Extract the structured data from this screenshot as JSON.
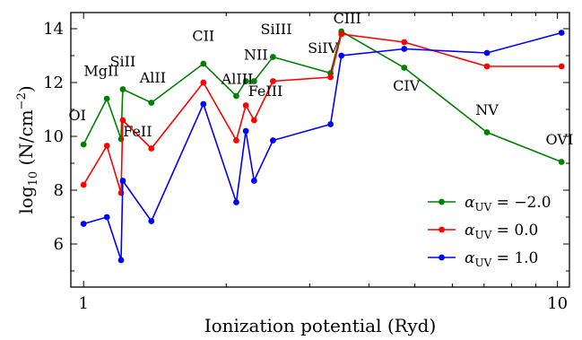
{
  "chart_data": {
    "type": "line",
    "xscale": "log",
    "xlim": [
      0.94,
      10.6
    ],
    "ylim": [
      4.4,
      14.6
    ],
    "xticks": [
      1,
      10
    ],
    "xtick_labels": [
      "1",
      "10"
    ],
    "yticks": [
      6,
      8,
      10,
      12,
      14
    ],
    "ytick_labels": [
      "6",
      "8",
      "10",
      "12",
      "14"
    ],
    "xlabel": "Ionization potential (Ryd)",
    "ylabel_parts": {
      "prefix": "log",
      "sub": "10",
      "mid": " (N/cm",
      "sup": "−2",
      "suffix": ")"
    },
    "grid": false,
    "legend_position": "lower-right",
    "series": [
      {
        "name_alpha": "α",
        "name_sub": "UV",
        "name_value": " = −2.0",
        "color": "#008000",
        "x": [
          1.0,
          1.12,
          1.2,
          1.21,
          1.39,
          1.79,
          2.1,
          2.2,
          2.29,
          2.51,
          3.32,
          3.5,
          4.75,
          7.1,
          10.2
        ],
        "y": [
          9.7,
          11.4,
          9.9,
          11.75,
          11.25,
          12.7,
          11.5,
          12.05,
          12.05,
          12.95,
          12.35,
          13.9,
          12.55,
          10.15,
          9.05
        ]
      },
      {
        "name_alpha": "α",
        "name_sub": "UV",
        "name_value": " = 0.0",
        "color": "#ff0000",
        "x": [
          1.0,
          1.12,
          1.2,
          1.21,
          1.39,
          1.79,
          2.1,
          2.2,
          2.29,
          2.51,
          3.32,
          3.5,
          4.75,
          7.1,
          10.2
        ],
        "y": [
          8.2,
          9.65,
          7.9,
          10.6,
          9.55,
          12.0,
          9.85,
          11.15,
          10.6,
          12.05,
          12.2,
          13.8,
          13.5,
          12.6,
          12.6
        ]
      },
      {
        "name_alpha": "α",
        "name_sub": "UV",
        "name_value": " = 1.0",
        "color": "#0000ff",
        "x": [
          1.0,
          1.12,
          1.2,
          1.21,
          1.39,
          1.79,
          2.1,
          2.2,
          2.29,
          2.51,
          3.32,
          3.5,
          4.75,
          7.1,
          10.2
        ],
        "y": [
          6.75,
          7.0,
          5.4,
          8.35,
          6.85,
          11.2,
          7.55,
          10.2,
          8.35,
          9.85,
          10.45,
          13.0,
          13.25,
          13.1,
          13.85
        ]
      }
    ],
    "annotations": [
      {
        "text": "OI",
        "x": 0.97,
        "y": 10.6
      },
      {
        "text": "MgII",
        "x": 1.09,
        "y": 12.25
      },
      {
        "text": "SiII",
        "x": 1.21,
        "y": 12.6
      },
      {
        "text": "FeII",
        "x": 1.3,
        "y": 10.0
      },
      {
        "text": "AlII",
        "x": 1.4,
        "y": 12.0
      },
      {
        "text": "CII",
        "x": 1.79,
        "y": 13.55
      },
      {
        "text": "AlIII",
        "x": 2.11,
        "y": 11.95
      },
      {
        "text": "NII",
        "x": 2.31,
        "y": 12.85
      },
      {
        "text": "FeIII",
        "x": 2.42,
        "y": 11.5
      },
      {
        "text": "SiIII",
        "x": 2.55,
        "y": 13.8
      },
      {
        "text": "SiIV",
        "x": 3.2,
        "y": 13.1
      },
      {
        "text": "CIII",
        "x": 3.6,
        "y": 14.2
      },
      {
        "text": "CIV",
        "x": 4.8,
        "y": 11.7
      },
      {
        "text": "NV",
        "x": 7.1,
        "y": 10.8
      },
      {
        "text": "OVI",
        "x": 10.1,
        "y": 9.7
      }
    ]
  }
}
